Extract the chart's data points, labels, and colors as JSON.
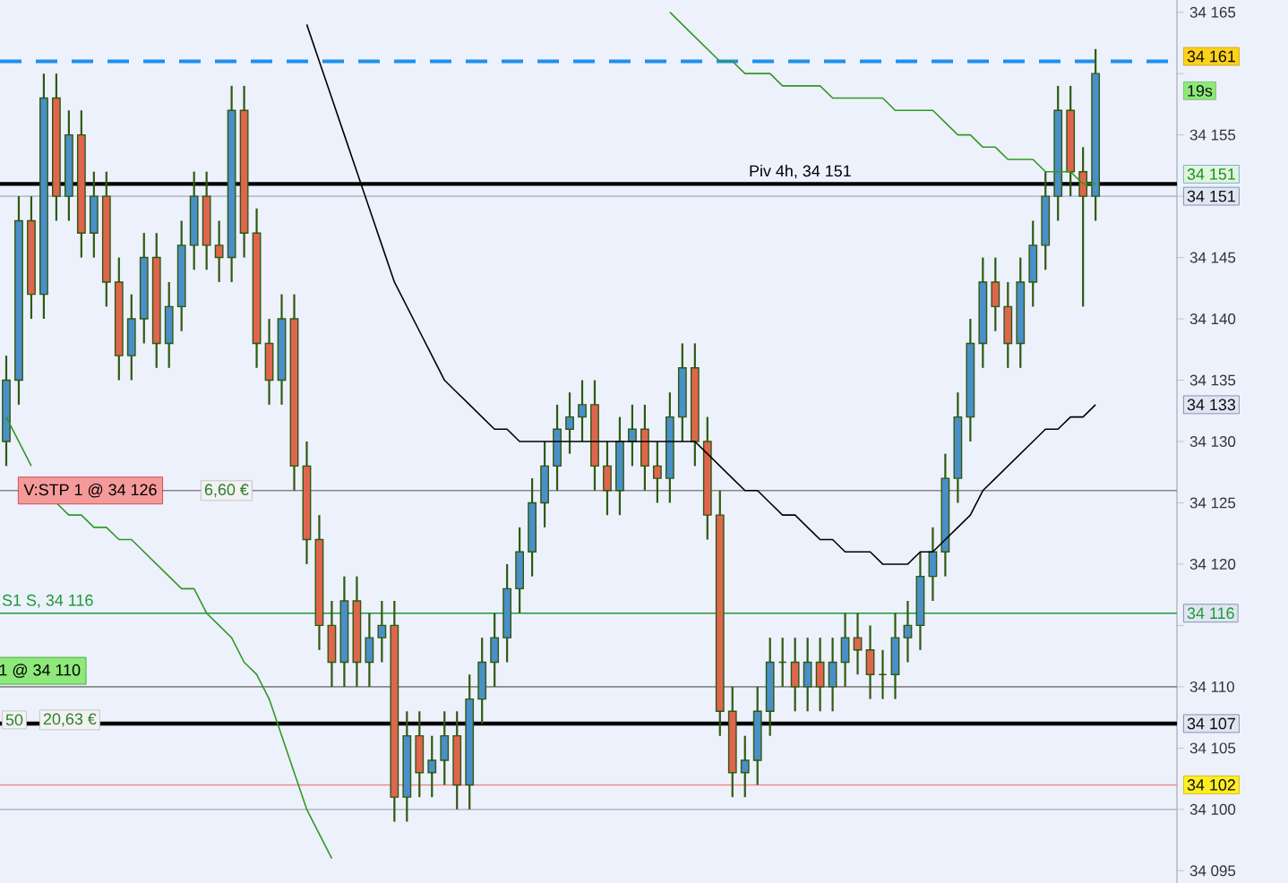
{
  "chart_data": {
    "type": "candlestick",
    "categories": [
      null,
      null,
      null,
      null,
      null,
      null,
      null,
      null,
      null,
      null,
      null,
      null,
      null,
      null,
      null,
      null,
      null,
      null,
      null,
      null,
      null,
      null,
      null,
      null,
      null,
      null,
      null,
      null,
      null,
      null,
      null,
      null,
      null,
      null,
      null,
      null,
      null,
      null,
      null,
      null,
      null,
      null,
      null,
      null,
      null,
      null,
      null,
      null,
      null,
      null,
      null,
      null,
      null,
      null,
      null,
      null,
      null,
      null,
      null,
      null,
      null,
      null,
      null,
      null,
      null,
      null,
      null,
      null,
      null,
      null,
      null,
      null,
      null,
      null,
      null,
      null,
      null,
      null,
      null,
      null,
      null,
      null,
      null,
      null,
      null,
      null,
      null,
      null,
      null,
      null,
      null,
      null,
      null,
      null
    ],
    "color": "#2d5a0e",
    "ohlc": [
      [
        34130,
        34137,
        34128,
        34135
      ],
      [
        34135,
        34150,
        34133,
        34148
      ],
      [
        34148,
        34150,
        34140,
        34142
      ],
      [
        34142,
        34160,
        34140,
        34158
      ],
      [
        34158,
        34160,
        34148,
        34150
      ],
      [
        34150,
        34157,
        34148,
        34155
      ],
      [
        34155,
        34157,
        34145,
        34147
      ],
      [
        34147,
        34152,
        34145,
        34150
      ],
      [
        34150,
        34152,
        34141,
        34143
      ],
      [
        34143,
        34145,
        34135,
        34137
      ],
      [
        34137,
        34142,
        34135,
        34140
      ],
      [
        34140,
        34147,
        34138,
        34145
      ],
      [
        34145,
        34147,
        34136,
        34138
      ],
      [
        34138,
        34143,
        34136,
        34141
      ],
      [
        34141,
        34148,
        34139,
        34146
      ],
      [
        34146,
        34152,
        34144,
        34150
      ],
      [
        34150,
        34152,
        34144,
        34146
      ],
      [
        34146,
        34148,
        34143,
        34145
      ],
      [
        34145,
        34159,
        34143,
        34157
      ],
      [
        34157,
        34159,
        34145,
        34147
      ],
      [
        34147,
        34149,
        34136,
        34138
      ],
      [
        34138,
        34140,
        34133,
        34135
      ],
      [
        34135,
        34142,
        34133,
        34140
      ],
      [
        34140,
        34142,
        34126,
        34128
      ],
      [
        34128,
        34130,
        34120,
        34122
      ],
      [
        34122,
        34124,
        34113,
        34115
      ],
      [
        34115,
        34117,
        34110,
        34112
      ],
      [
        34112,
        34119,
        34110,
        34117
      ],
      [
        34117,
        34119,
        34110,
        34112
      ],
      [
        34112,
        34116,
        34110,
        34114
      ],
      [
        34114,
        34117,
        34112,
        34115
      ],
      [
        34115,
        34117,
        34099,
        34101
      ],
      [
        34101,
        34108,
        34099,
        34106
      ],
      [
        34106,
        34108,
        34101,
        34103
      ],
      [
        34103,
        34106,
        34101,
        34104
      ],
      [
        34104,
        34108,
        34102,
        34106
      ],
      [
        34106,
        34108,
        34100,
        34102
      ],
      [
        34102,
        34111,
        34100,
        34109
      ],
      [
        34109,
        34114,
        34107,
        34112
      ],
      [
        34112,
        34116,
        34110,
        34114
      ],
      [
        34114,
        34120,
        34112,
        34118
      ],
      [
        34118,
        34123,
        34116,
        34121
      ],
      [
        34121,
        34127,
        34119,
        34125
      ],
      [
        34125,
        34130,
        34123,
        34128
      ],
      [
        34128,
        34133,
        34126,
        34131
      ],
      [
        34131,
        34134,
        34129,
        34132
      ],
      [
        34132,
        34135,
        34130,
        34133
      ],
      [
        34133,
        34135,
        34126,
        34128
      ],
      [
        34128,
        34130,
        34124,
        34126
      ],
      [
        34126,
        34132,
        34124,
        34130
      ],
      [
        34130,
        34133,
        34128,
        34131
      ],
      [
        34131,
        34133,
        34126,
        34128
      ],
      [
        34128,
        34130,
        34125,
        34127
      ],
      [
        34127,
        34134,
        34125,
        34132
      ],
      [
        34132,
        34138,
        34130,
        34136
      ],
      [
        34136,
        34138,
        34128,
        34130
      ],
      [
        34130,
        34132,
        34122,
        34124
      ],
      [
        34124,
        34126,
        34106,
        34108
      ],
      [
        34108,
        34110,
        34101,
        34103
      ],
      [
        34103,
        34106,
        34101,
        34104
      ],
      [
        34104,
        34110,
        34102,
        34108
      ],
      [
        34108,
        34114,
        34106,
        34112
      ],
      [
        34112,
        34114,
        34110,
        34112
      ],
      [
        34112,
        34114,
        34108,
        34110
      ],
      [
        34110,
        34114,
        34108,
        34112
      ],
      [
        34112,
        34114,
        34108,
        34110
      ],
      [
        34110,
        34114,
        34108,
        34112
      ],
      [
        34112,
        34116,
        34110,
        34114
      ],
      [
        34114,
        34116,
        34111,
        34113
      ],
      [
        34113,
        34115,
        34109,
        34111
      ],
      [
        34111,
        34113,
        34109,
        34111
      ],
      [
        34111,
        34116,
        34109,
        34114
      ],
      [
        34114,
        34117,
        34112,
        34115
      ],
      [
        34115,
        34121,
        34113,
        34119
      ],
      [
        34119,
        34123,
        34117,
        34121
      ],
      [
        34121,
        34129,
        34119,
        34127
      ],
      [
        34127,
        34134,
        34125,
        34132
      ],
      [
        34132,
        34140,
        34130,
        34138
      ],
      [
        34138,
        34145,
        34136,
        34143
      ],
      [
        34143,
        34145,
        34139,
        34141
      ],
      [
        34141,
        34143,
        34136,
        34138
      ],
      [
        34138,
        34145,
        34136,
        34143
      ],
      [
        34143,
        34148,
        34141,
        34146
      ],
      [
        34146,
        34152,
        34144,
        34150
      ],
      [
        34150,
        34159,
        34148,
        34157
      ],
      [
        34157,
        34159,
        34150,
        34152
      ],
      [
        34152,
        34154,
        34141,
        34150
      ],
      [
        34150,
        34162,
        34148,
        34160
      ],
      null,
      null,
      null,
      null,
      null,
      null
    ],
    "series": [
      {
        "type": "line",
        "color": "#000000",
        "values": [
          null,
          null,
          null,
          null,
          null,
          null,
          null,
          null,
          null,
          null,
          null,
          null,
          null,
          null,
          null,
          null,
          null,
          null,
          null,
          null,
          null,
          null,
          null,
          null,
          34164,
          34161,
          34158,
          34155,
          34152,
          34149,
          34146,
          34143,
          34141,
          34139,
          34137,
          34135,
          34134,
          34133,
          34132,
          34131,
          34131,
          34130,
          34130,
          34130,
          34130,
          34130,
          34130,
          34130,
          34130,
          34130,
          34130,
          34130,
          34130,
          34130,
          34130,
          34130,
          34129,
          34128,
          34127,
          34126,
          34126,
          34125,
          34124,
          34124,
          34123,
          34122,
          34122,
          34121,
          34121,
          34121,
          34120,
          34120,
          34120,
          34121,
          34121,
          34122,
          34123,
          34124,
          34126,
          34127,
          34128,
          34129,
          34130,
          34131,
          34131,
          34132,
          34132,
          34133,
          null,
          null,
          null,
          null,
          null,
          null
        ]
      },
      {
        "type": "line",
        "color": "#2e9a22",
        "values": [
          34132,
          34130,
          34128,
          null,
          34125,
          34124,
          34124,
          34123,
          34123,
          34122,
          34122,
          34121,
          34120,
          34119,
          34118,
          34118,
          34116,
          34115,
          34114,
          34112,
          34111,
          34109,
          34106,
          34103,
          34100,
          34098,
          34096,
          null,
          null,
          null,
          null,
          null,
          null,
          null,
          null,
          null,
          null,
          null,
          null,
          null,
          null,
          null,
          null,
          null,
          null,
          null,
          null,
          null,
          null,
          null,
          null,
          null,
          null,
          34165,
          34164,
          34163,
          34162,
          34161,
          34161,
          34160,
          34160,
          34160,
          34159,
          34159,
          34159,
          34159,
          34158,
          34158,
          34158,
          34158,
          34158,
          34157,
          34157,
          34157,
          34157,
          34156,
          34155,
          34155,
          34154,
          34154,
          34153,
          34153,
          34153,
          34152,
          34152,
          34152,
          34151,
          34151,
          null,
          null,
          null,
          null,
          null,
          null
        ]
      }
    ],
    "ylim": [
      34094,
      34166
    ],
    "yticks": [
      {
        "value": 34095,
        "label": "34 095"
      },
      {
        "value": 34100,
        "label": "34 100"
      },
      {
        "value": 34105,
        "label": "34 105"
      },
      {
        "value": 34110,
        "label": "34 110"
      },
      {
        "value": 34115,
        "label": null
      },
      {
        "value": 34120,
        "label": "34 120"
      },
      {
        "value": 34125,
        "label": "34 125"
      },
      {
        "value": 34130,
        "label": "34 130"
      },
      {
        "value": 34135,
        "label": "34 135"
      },
      {
        "value": 34140,
        "label": "34 140"
      },
      {
        "value": 34145,
        "label": "34 145"
      },
      {
        "value": 34150,
        "label": null
      },
      {
        "value": 34155,
        "label": "34 155"
      },
      {
        "value": 34160,
        "label": null
      },
      {
        "value": 34165,
        "label": "34 165"
      }
    ],
    "ref_lines": [
      {
        "axis": "y",
        "value": 34161,
        "color": "#1e90ee",
        "line_style": "dashed"
      },
      {
        "axis": "y",
        "value": 34150,
        "color": "#b8bed0"
      },
      {
        "axis": "y",
        "value": 34100,
        "color": "#b8bed0"
      },
      {
        "axis": "y",
        "value": 34151,
        "label": "Piv 4h, 34 151",
        "color": "#000000"
      },
      {
        "axis": "y",
        "value": 34126,
        "label": "V:STP  1 @ 34 126",
        "color": "#888888"
      },
      {
        "axis": "y",
        "value": 34116,
        "label": "S1 S, 34 116",
        "color": "#1f9a38"
      },
      {
        "axis": "y",
        "value": 34110,
        "label": "1 @ 34 110",
        "color": "#888888"
      },
      {
        "axis": "y",
        "value": 34107,
        "color": "#000000"
      },
      {
        "axis": "y",
        "value": 34102,
        "color": "#f08a8a"
      }
    ],
    "annotations": [
      "6,60 €",
      "50",
      "20,63 €",
      "34 161",
      "19s",
      "34 151",
      "34 151",
      "34 133",
      "34 116",
      "34 107",
      "34 102"
    ]
  }
}
